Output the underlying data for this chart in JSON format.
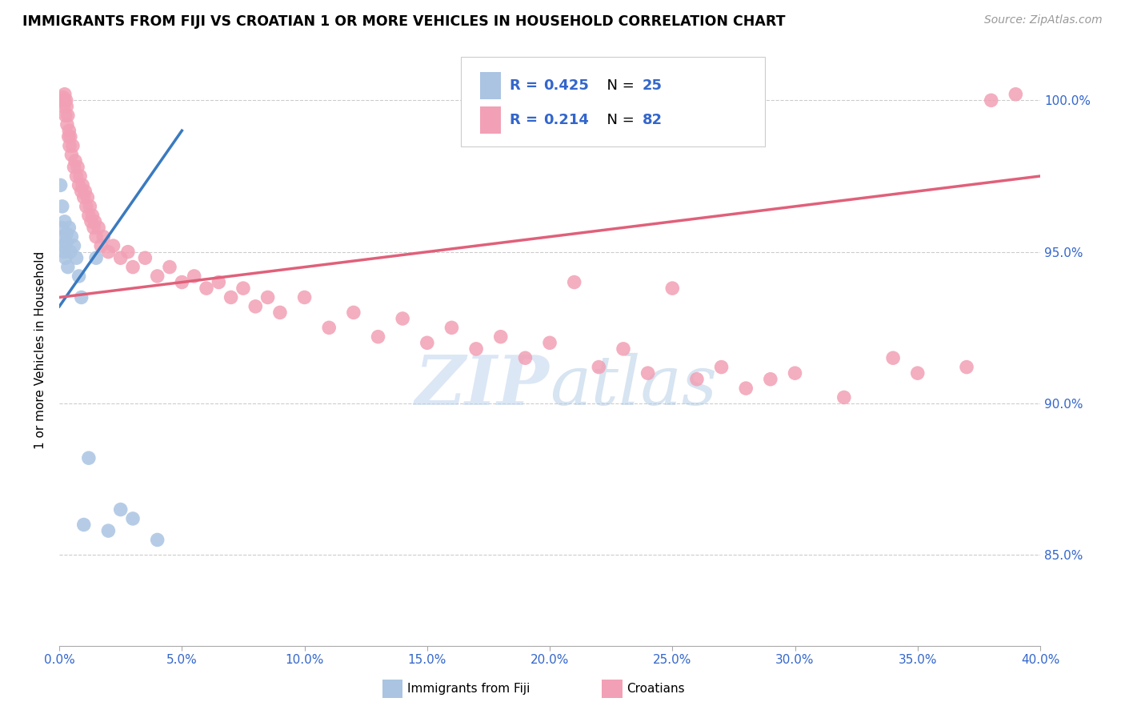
{
  "title": "IMMIGRANTS FROM FIJI VS CROATIAN 1 OR MORE VEHICLES IN HOUSEHOLD CORRELATION CHART",
  "source": "Source: ZipAtlas.com",
  "ylabel": "1 or more Vehicles in Household",
  "xmin": 0.0,
  "xmax": 40.0,
  "ymin": 82.0,
  "ymax": 101.5,
  "yticks": [
    85.0,
    90.0,
    95.0,
    100.0
  ],
  "xticks": [
    0.0,
    5.0,
    10.0,
    15.0,
    20.0,
    25.0,
    30.0,
    35.0,
    40.0
  ],
  "fiji_color": "#aac4e2",
  "croatian_color": "#f2a0b5",
  "fiji_line_color": "#3a7abf",
  "croatian_line_color": "#e0607a",
  "legend_text_color": "#3366cc",
  "watermark_zip": "ZIP",
  "watermark_atlas": "atlas",
  "watermark_color_zip": "#c5d8ee",
  "watermark_color_atlas": "#b0c8e8",
  "fiji_points": [
    [
      0.05,
      97.2
    ],
    [
      0.1,
      95.8
    ],
    [
      0.12,
      96.5
    ],
    [
      0.15,
      95.5
    ],
    [
      0.18,
      95.2
    ],
    [
      0.2,
      95.0
    ],
    [
      0.22,
      96.0
    ],
    [
      0.25,
      94.8
    ],
    [
      0.28,
      95.3
    ],
    [
      0.3,
      95.6
    ],
    [
      0.35,
      94.5
    ],
    [
      0.4,
      95.8
    ],
    [
      0.45,
      95.0
    ],
    [
      0.5,
      95.5
    ],
    [
      0.6,
      95.2
    ],
    [
      0.7,
      94.8
    ],
    [
      0.8,
      94.2
    ],
    [
      0.9,
      93.5
    ],
    [
      1.0,
      86.0
    ],
    [
      1.2,
      88.2
    ],
    [
      1.5,
      94.8
    ],
    [
      2.0,
      85.8
    ],
    [
      2.5,
      86.5
    ],
    [
      3.0,
      86.2
    ],
    [
      4.0,
      85.5
    ]
  ],
  "croatian_points": [
    [
      0.1,
      100.0
    ],
    [
      0.15,
      100.1
    ],
    [
      0.18,
      99.8
    ],
    [
      0.2,
      100.0
    ],
    [
      0.22,
      100.2
    ],
    [
      0.25,
      99.5
    ],
    [
      0.28,
      100.0
    ],
    [
      0.3,
      99.8
    ],
    [
      0.32,
      99.2
    ],
    [
      0.35,
      99.5
    ],
    [
      0.38,
      98.8
    ],
    [
      0.4,
      99.0
    ],
    [
      0.42,
      98.5
    ],
    [
      0.45,
      98.8
    ],
    [
      0.5,
      98.2
    ],
    [
      0.55,
      98.5
    ],
    [
      0.6,
      97.8
    ],
    [
      0.65,
      98.0
    ],
    [
      0.7,
      97.5
    ],
    [
      0.75,
      97.8
    ],
    [
      0.8,
      97.2
    ],
    [
      0.85,
      97.5
    ],
    [
      0.9,
      97.0
    ],
    [
      0.95,
      97.2
    ],
    [
      1.0,
      96.8
    ],
    [
      1.05,
      97.0
    ],
    [
      1.1,
      96.5
    ],
    [
      1.15,
      96.8
    ],
    [
      1.2,
      96.2
    ],
    [
      1.25,
      96.5
    ],
    [
      1.3,
      96.0
    ],
    [
      1.35,
      96.2
    ],
    [
      1.4,
      95.8
    ],
    [
      1.45,
      96.0
    ],
    [
      1.5,
      95.5
    ],
    [
      1.6,
      95.8
    ],
    [
      1.7,
      95.2
    ],
    [
      1.8,
      95.5
    ],
    [
      2.0,
      95.0
    ],
    [
      2.2,
      95.2
    ],
    [
      2.5,
      94.8
    ],
    [
      2.8,
      95.0
    ],
    [
      3.0,
      94.5
    ],
    [
      3.5,
      94.8
    ],
    [
      4.0,
      94.2
    ],
    [
      4.5,
      94.5
    ],
    [
      5.0,
      94.0
    ],
    [
      5.5,
      94.2
    ],
    [
      6.0,
      93.8
    ],
    [
      6.5,
      94.0
    ],
    [
      7.0,
      93.5
    ],
    [
      7.5,
      93.8
    ],
    [
      8.0,
      93.2
    ],
    [
      8.5,
      93.5
    ],
    [
      9.0,
      93.0
    ],
    [
      10.0,
      93.5
    ],
    [
      11.0,
      92.5
    ],
    [
      12.0,
      93.0
    ],
    [
      13.0,
      92.2
    ],
    [
      14.0,
      92.8
    ],
    [
      15.0,
      92.0
    ],
    [
      16.0,
      92.5
    ],
    [
      17.0,
      91.8
    ],
    [
      18.0,
      92.2
    ],
    [
      19.0,
      91.5
    ],
    [
      20.0,
      92.0
    ],
    [
      21.0,
      94.0
    ],
    [
      22.0,
      91.2
    ],
    [
      23.0,
      91.8
    ],
    [
      24.0,
      91.0
    ],
    [
      25.0,
      93.8
    ],
    [
      26.0,
      90.8
    ],
    [
      27.0,
      91.2
    ],
    [
      28.0,
      90.5
    ],
    [
      29.0,
      90.8
    ],
    [
      30.0,
      91.0
    ],
    [
      32.0,
      90.2
    ],
    [
      34.0,
      91.5
    ],
    [
      35.0,
      91.0
    ],
    [
      37.0,
      91.2
    ],
    [
      38.0,
      100.0
    ],
    [
      39.0,
      100.2
    ]
  ],
  "fiji_line_x": [
    0.0,
    5.0
  ],
  "fiji_line_y": [
    93.2,
    99.0
  ],
  "croatian_line_x": [
    0.0,
    40.0
  ],
  "croatian_line_y": [
    93.5,
    97.5
  ]
}
